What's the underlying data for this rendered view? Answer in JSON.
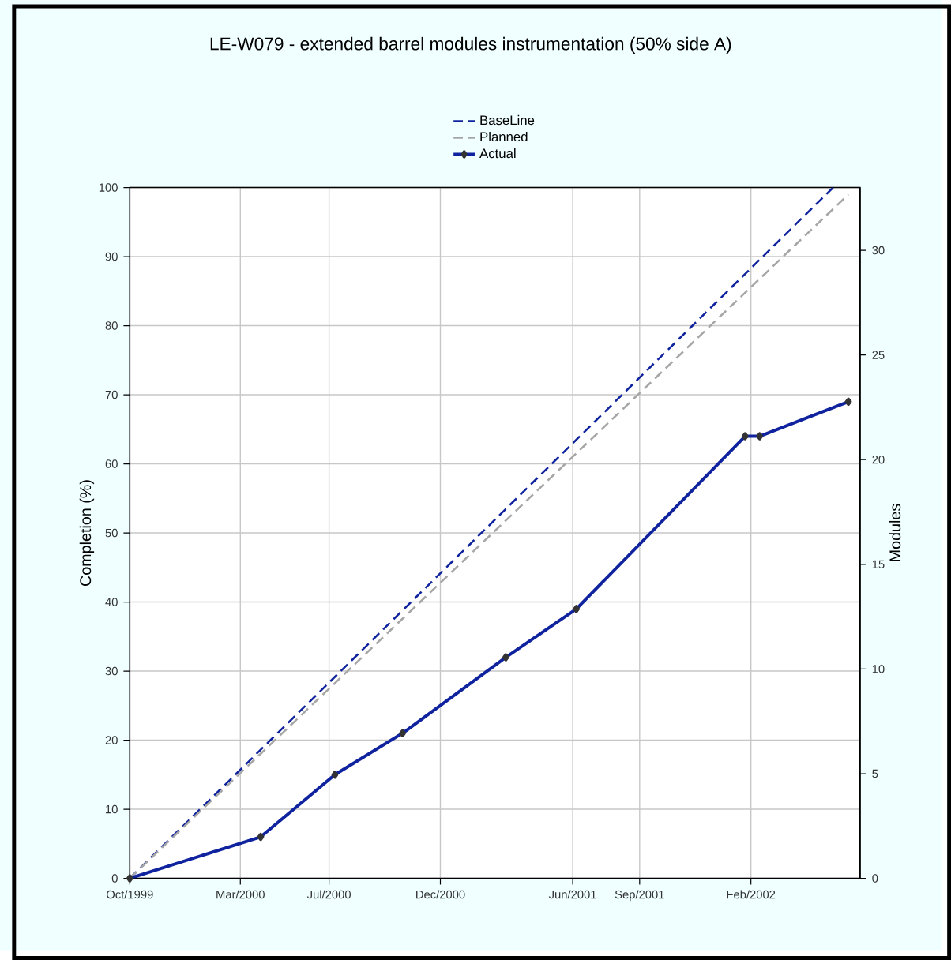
{
  "chart_data": {
    "type": "line",
    "title": "LE-W079 - extended barrel modules instrumentation (50% side A)",
    "ylabel": "Completion (%)",
    "y2label": "Modules",
    "xlim": [
      "1999-10-01",
      "2002-07-01"
    ],
    "xticks": [
      {
        "value": "1999-10-01",
        "label": "Oct/1999"
      },
      {
        "value": "2000-03-01",
        "label": "Mar/2000"
      },
      {
        "value": "2000-07-01",
        "label": "Jul/2000"
      },
      {
        "value": "2000-12-01",
        "label": "Dec/2000"
      },
      {
        "value": "2001-06-01",
        "label": "Jun/2001"
      },
      {
        "value": "2001-09-01",
        "label": "Sep/2001"
      },
      {
        "value": "2002-02-01",
        "label": "Feb/2002"
      }
    ],
    "ylim": [
      0,
      100
    ],
    "yticks": [
      0,
      10,
      20,
      30,
      40,
      50,
      60,
      70,
      80,
      90,
      100
    ],
    "y2lim": [
      0,
      33
    ],
    "y2ticks": [
      0,
      5,
      10,
      15,
      20,
      25,
      30
    ],
    "grid": true,
    "legend": "top",
    "series": [
      {
        "name": "BaseLine",
        "color": "#10239e",
        "line_style": "dashed",
        "x": [
          "1999-10-01",
          "2002-05-25"
        ],
        "values": [
          0,
          100
        ]
      },
      {
        "name": "Planned",
        "color": "#a6a6a6",
        "line_style": "dashed",
        "x": [
          "1999-10-01",
          "2002-06-15"
        ],
        "values": [
          0,
          99
        ]
      },
      {
        "name": "Actual",
        "color": "#10239e",
        "line_style": "solid",
        "marker": "diamond",
        "x": [
          "1999-10-01",
          "2000-03-29",
          "2000-07-09",
          "2000-10-10",
          "2001-03-01",
          "2001-06-06",
          "2002-01-24",
          "2002-02-13",
          "2002-06-15"
        ],
        "values": [
          0,
          6,
          15,
          21,
          32,
          39,
          64,
          64,
          69
        ]
      }
    ]
  }
}
